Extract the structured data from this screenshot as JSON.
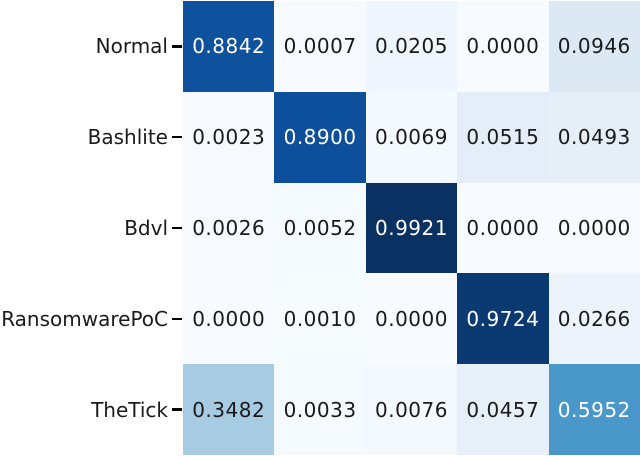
{
  "figure": {
    "kind": "confusion-matrix-heatmap",
    "background": "#ffffff"
  },
  "chart_data": {
    "type": "heatmap",
    "title": "",
    "xlabel": "",
    "ylabel": "",
    "colormap": "Blues",
    "value_range": [
      0.0,
      0.9921
    ],
    "legend": "none",
    "colorbar": false,
    "row_labels": [
      "Normal",
      "Bashlite",
      "Bdvl",
      "RansomwarePoC",
      "TheTick"
    ],
    "col_labels_visible": false,
    "values": [
      [
        0.8842,
        0.0007,
        0.0205,
        0.0,
        0.0946
      ],
      [
        0.0023,
        0.89,
        0.0069,
        0.0515,
        0.0493
      ],
      [
        0.0026,
        0.0052,
        0.9921,
        0.0,
        0.0
      ],
      [
        0.0,
        0.001,
        0.0,
        0.9724,
        0.0266
      ],
      [
        0.3482,
        0.0033,
        0.0076,
        0.0457,
        0.5952
      ]
    ],
    "cell_labels": [
      [
        "0.8842",
        "0.0007",
        "0.0205",
        "0.0000",
        "0.0946"
      ],
      [
        "0.0023",
        "0.8900",
        "0.0069",
        "0.0515",
        "0.0493"
      ],
      [
        "0.0026",
        "0.0052",
        "0.9921",
        "0.0000",
        "0.0000"
      ],
      [
        "0.0000",
        "0.0010",
        "0.0000",
        "0.9724",
        "0.0266"
      ],
      [
        "0.3482",
        "0.0033",
        "0.0076",
        "0.0457",
        "0.5952"
      ]
    ],
    "cell_colors": [
      [
        "#0e529d",
        "#f7fbff",
        "#f0f6fd",
        "#f7fbff",
        "#dce8f4"
      ],
      [
        "#f6fafe",
        "#0d4f9b",
        "#f4f9fe",
        "#e5edf8",
        "#e6eef8"
      ],
      [
        "#f6fafe",
        "#f5fafe",
        "#0a3161",
        "#f7fbff",
        "#f7fbff"
      ],
      [
        "#f7fbff",
        "#f6fbfe",
        "#f7fbff",
        "#0a3a71",
        "#edf3fa"
      ],
      [
        "#a7cbe2",
        "#f5fafe",
        "#f4f9fe",
        "#e7eff9",
        "#4a97c9"
      ]
    ]
  },
  "colors": {
    "page_background": "#ffffff",
    "text_on_dark": "#ffffff",
    "text_on_light": "#1a1a1a",
    "axis_tick": "#000000"
  }
}
